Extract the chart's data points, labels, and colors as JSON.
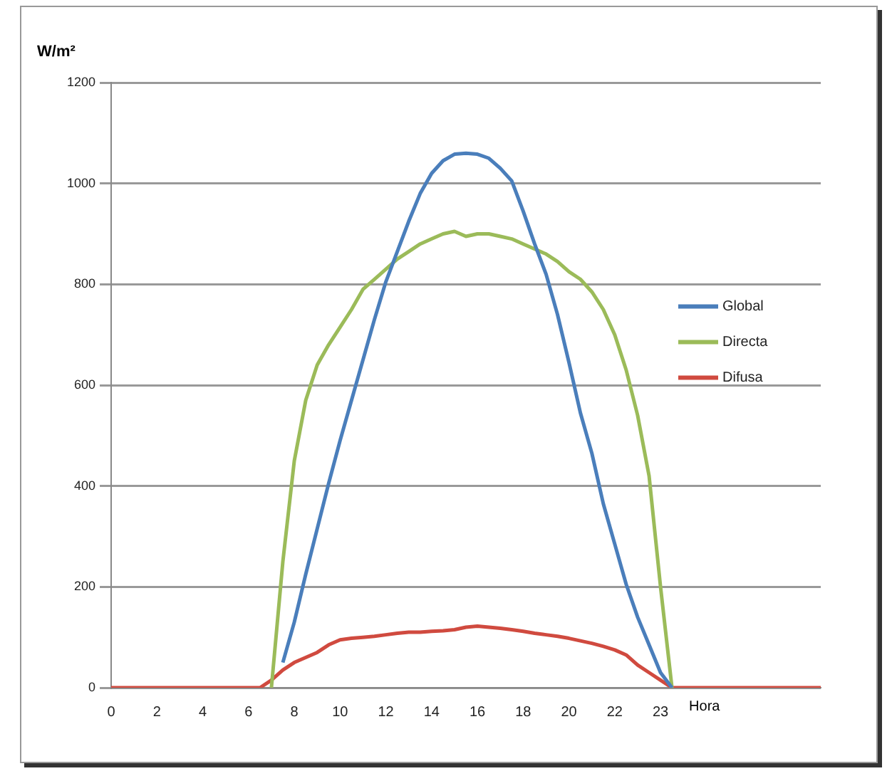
{
  "chart_data": {
    "type": "line",
    "ylabel": "W/m²",
    "xlabel": "Hora",
    "categories": [
      "0",
      null,
      null,
      null,
      "2",
      null,
      null,
      null,
      "4",
      null,
      null,
      null,
      "6",
      null,
      null,
      null,
      "8",
      null,
      null,
      null,
      "10",
      null,
      null,
      null,
      "12",
      null,
      null,
      null,
      "14",
      null,
      null,
      null,
      "16",
      null,
      null,
      null,
      "18",
      null,
      null,
      null,
      "20",
      null,
      null,
      null,
      "22",
      null,
      null,
      null,
      "23",
      null,
      null,
      null,
      null,
      null,
      null,
      null,
      null,
      null,
      null,
      null,
      null,
      null,
      null
    ],
    "series": [
      {
        "name": "Global",
        "color": "#4a7ebb",
        "values": [
          null,
          null,
          null,
          null,
          null,
          null,
          null,
          null,
          null,
          null,
          null,
          null,
          null,
          null,
          null,
          50,
          130,
          225,
          315,
          405,
          490,
          570,
          650,
          730,
          805,
          865,
          925,
          980,
          1020,
          1045,
          1058,
          1060,
          1058,
          1050,
          1030,
          1005,
          945,
          880,
          820,
          740,
          645,
          545,
          465,
          365,
          285,
          205,
          140,
          85,
          30,
          0,
          null,
          null,
          null,
          null,
          null,
          null,
          null,
          null,
          null,
          null,
          null,
          null,
          null
        ]
      },
      {
        "name": "Directa",
        "color": "#9bbb59",
        "values": [
          null,
          null,
          null,
          null,
          null,
          null,
          null,
          null,
          null,
          null,
          null,
          null,
          null,
          null,
          0,
          250,
          450,
          570,
          640,
          680,
          715,
          750,
          790,
          810,
          830,
          850,
          865,
          880,
          890,
          900,
          905,
          895,
          900,
          900,
          895,
          890,
          880,
          870,
          860,
          845,
          825,
          810,
          785,
          750,
          700,
          630,
          540,
          420,
          200,
          0,
          null,
          null,
          null,
          null,
          null,
          null,
          null,
          null,
          null,
          null,
          null,
          null,
          null
        ]
      },
      {
        "name": "Difusa",
        "color": "#d04a3f",
        "values": [
          0,
          0,
          0,
          0,
          0,
          0,
          0,
          0,
          0,
          0,
          0,
          0,
          0,
          0,
          15,
          35,
          50,
          60,
          70,
          85,
          95,
          98,
          100,
          102,
          105,
          108,
          110,
          110,
          112,
          113,
          115,
          120,
          122,
          120,
          118,
          115,
          112,
          108,
          105,
          102,
          98,
          93,
          88,
          82,
          75,
          65,
          45,
          30,
          15,
          0,
          0,
          0,
          0,
          0,
          0,
          0,
          0,
          0,
          0,
          0,
          0,
          0,
          0
        ]
      }
    ],
    "ylim": [
      0,
      1200
    ],
    "yticks": [
      0,
      200,
      400,
      600,
      800,
      1000,
      1200
    ],
    "grid": "y",
    "legend": "right",
    "marker": "none",
    "line_style": "solid"
  }
}
